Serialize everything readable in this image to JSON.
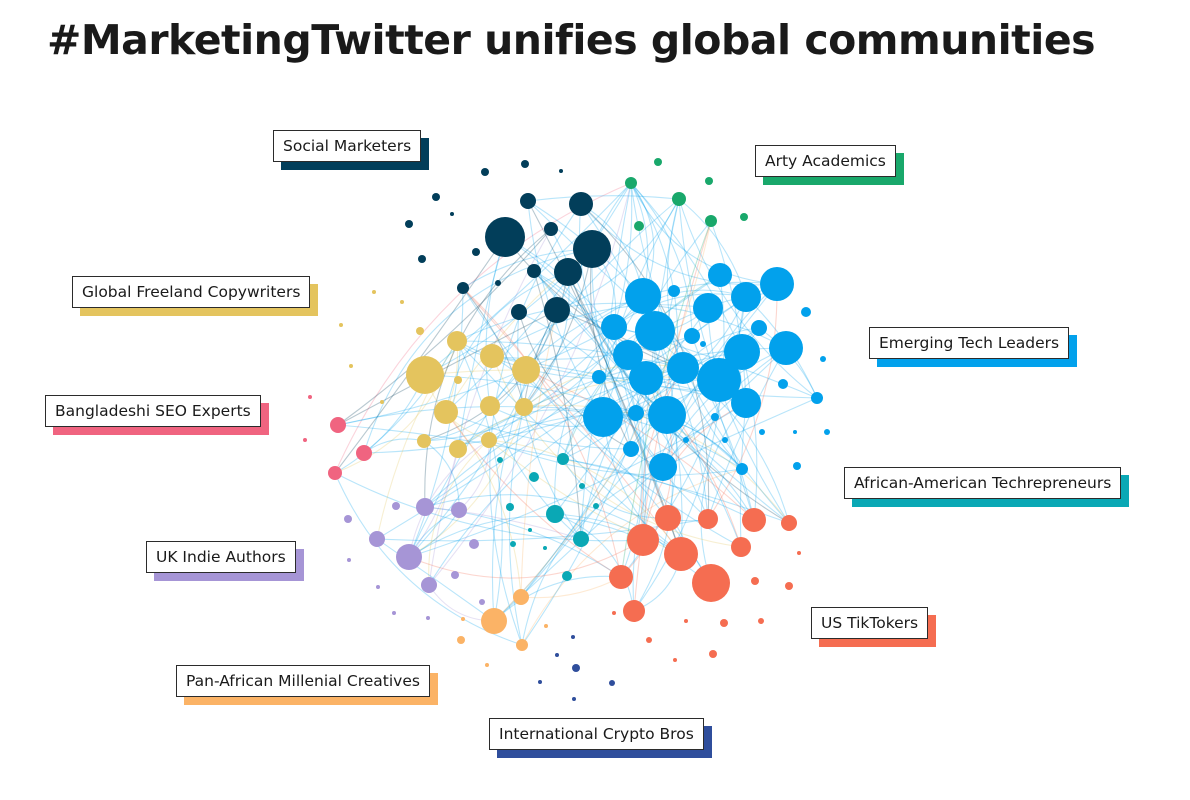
{
  "title": "#MarketingTwitter unifies global communities",
  "communities": [
    {
      "key": "social",
      "label": "Social Marketers",
      "color": "#023e5a"
    },
    {
      "key": "arty",
      "label": "Arty Academics",
      "color": "#19a86b"
    },
    {
      "key": "copy",
      "label": "Global Freeland Copywriters",
      "color": "#e4c45e"
    },
    {
      "key": "tech",
      "label": "Emerging Tech Leaders",
      "color": "#02a1ec"
    },
    {
      "key": "seo",
      "label": "Bangladeshi SEO Experts",
      "color": "#f06480"
    },
    {
      "key": "afam",
      "label": "African-American Techrepreneurs",
      "color": "#0aa8b5"
    },
    {
      "key": "uk",
      "label": "UK Indie Authors",
      "color": "#a695d6"
    },
    {
      "key": "tiktok",
      "label": "US TikTokers",
      "color": "#f56d51"
    },
    {
      "key": "panaf",
      "label": "Pan-African Millenial Creatives",
      "color": "#fbb366"
    },
    {
      "key": "crypto",
      "label": "International Crypto Bros",
      "color": "#2f4e9c"
    }
  ]
}
